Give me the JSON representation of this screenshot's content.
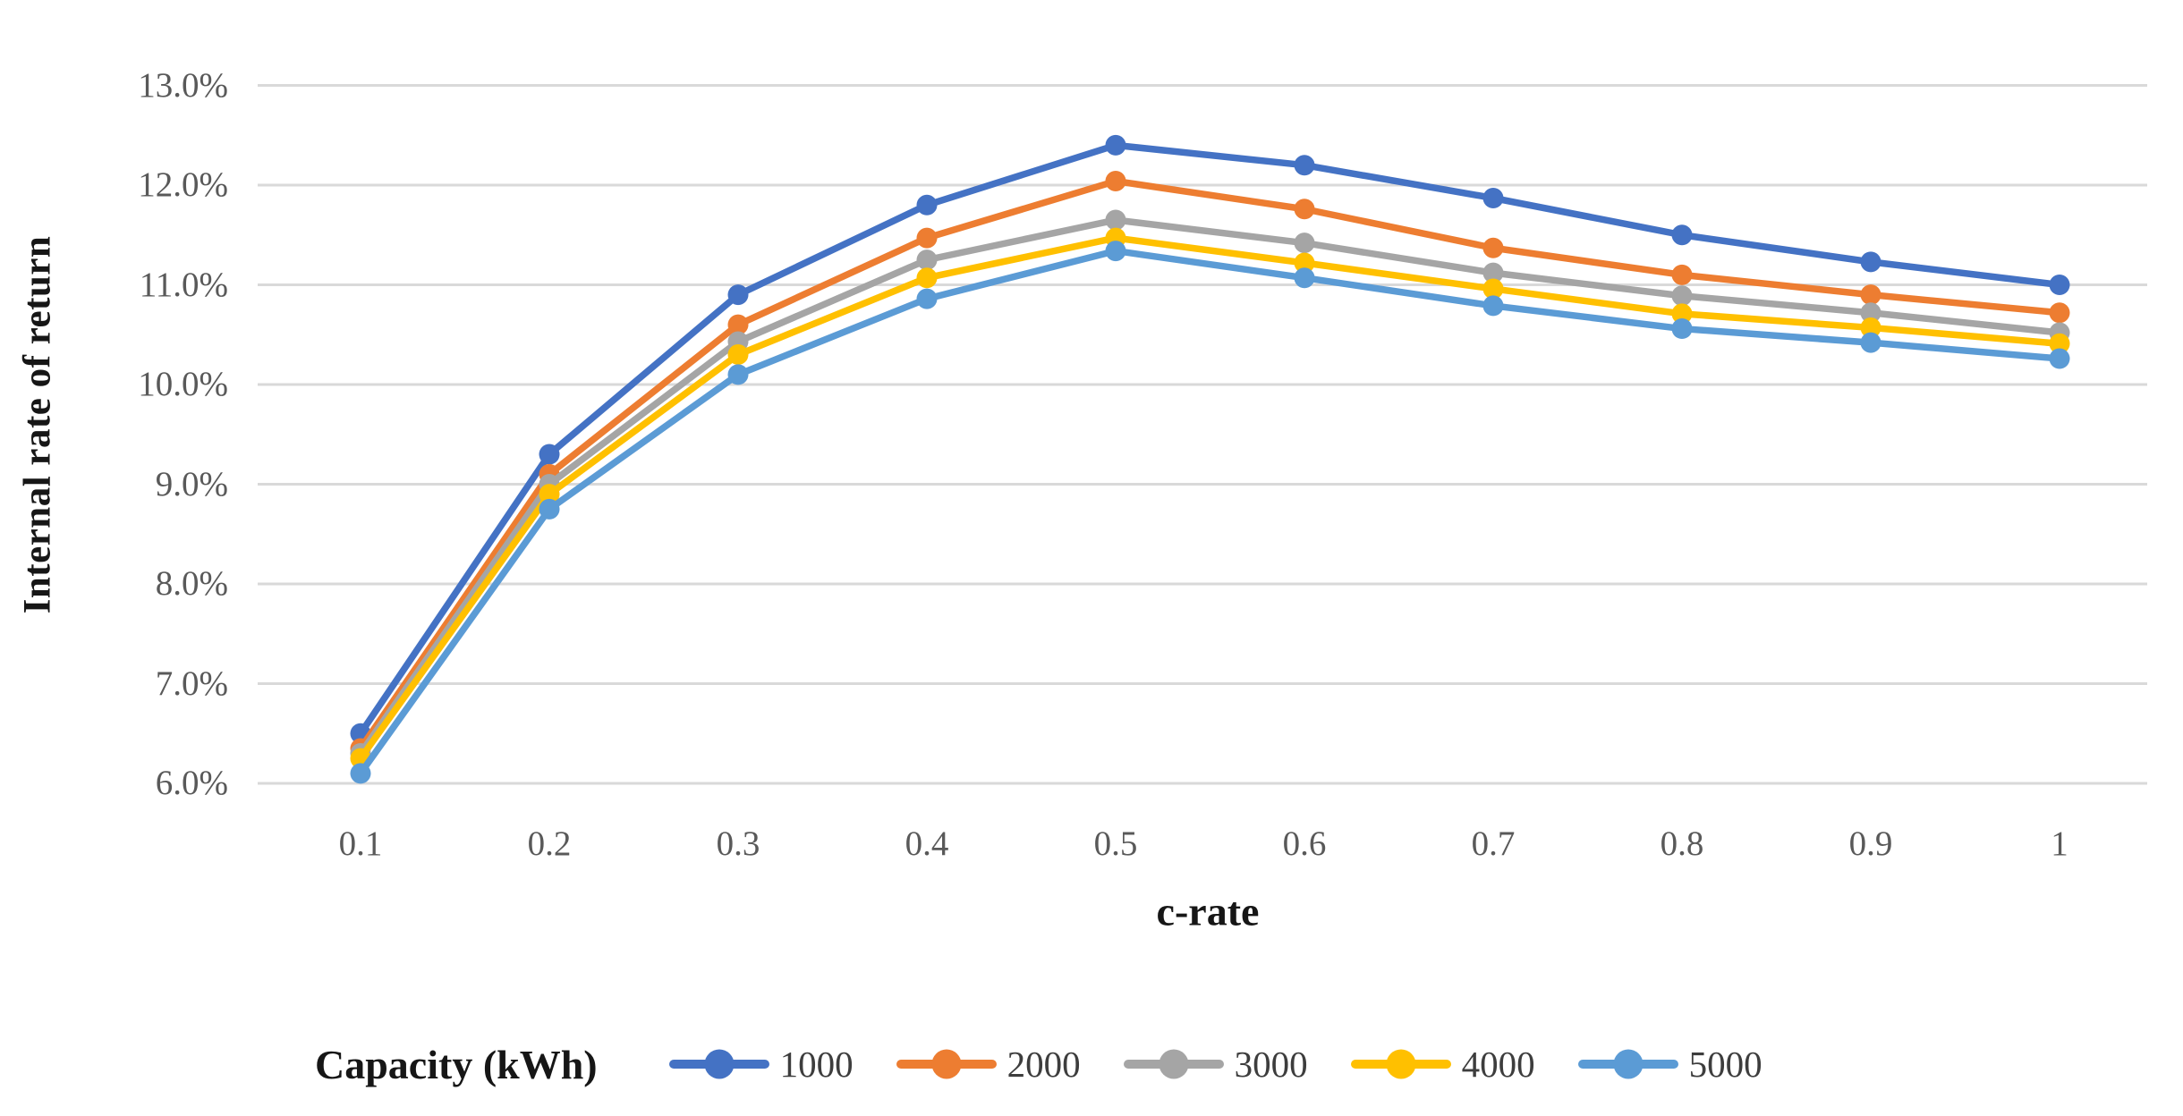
{
  "chart_data": {
    "type": "line",
    "title": "",
    "xlabel": "c-rate",
    "ylabel": "Internal rate of return",
    "legend_title": "Capacity (kWh)",
    "legend_position": "bottom",
    "grid": true,
    "background_color": "#ffffff",
    "gridline_color": "#d9d9d9",
    "tick_label_color": "#595959",
    "ylim": [
      6.0,
      13.0
    ],
    "xlim": [
      0.1,
      1.0
    ],
    "x": [
      0.1,
      0.2,
      0.3,
      0.4,
      0.5,
      0.6,
      0.7,
      0.8,
      0.9,
      1.0
    ],
    "xticks": [
      {
        "label": "0.1",
        "value": 0.1
      },
      {
        "label": "0.2",
        "value": 0.2
      },
      {
        "label": "0.3",
        "value": 0.3
      },
      {
        "label": "0.4",
        "value": 0.4
      },
      {
        "label": "0.5",
        "value": 0.5
      },
      {
        "label": "0.6",
        "value": 0.6
      },
      {
        "label": "0.7",
        "value": 0.7
      },
      {
        "label": "0.8",
        "value": 0.8
      },
      {
        "label": "0.9",
        "value": 0.9
      },
      {
        "label": "1",
        "value": 1.0
      }
    ],
    "yticks": [
      {
        "label": "6.0%",
        "value": 6.0
      },
      {
        "label": "7.0%",
        "value": 7.0
      },
      {
        "label": "8.0%",
        "value": 8.0
      },
      {
        "label": "9.0%",
        "value": 9.0
      },
      {
        "label": "10.0%",
        "value": 10.0
      },
      {
        "label": "11.0%",
        "value": 11.0
      },
      {
        "label": "12.0%",
        "value": 12.0
      },
      {
        "label": "13.0%",
        "value": 13.0
      }
    ],
    "y_unit": "percent",
    "series": [
      {
        "name": "1000",
        "color": "#4472C4",
        "values": [
          6.5,
          9.3,
          10.9,
          11.8,
          12.4,
          12.2,
          11.87,
          11.5,
          11.23,
          11.0
        ]
      },
      {
        "name": "2000",
        "color": "#ED7D31",
        "values": [
          6.35,
          9.1,
          10.6,
          11.47,
          12.04,
          11.76,
          11.37,
          11.1,
          10.9,
          10.72
        ]
      },
      {
        "name": "3000",
        "color": "#A5A5A5",
        "values": [
          6.3,
          9.0,
          10.43,
          11.25,
          11.65,
          11.42,
          11.12,
          10.89,
          10.72,
          10.52
        ]
      },
      {
        "name": "4000",
        "color": "#FFC000",
        "values": [
          6.25,
          8.9,
          10.3,
          11.07,
          11.47,
          11.22,
          10.96,
          10.71,
          10.57,
          10.41
        ]
      },
      {
        "name": "5000",
        "color": "#5B9BD5",
        "values": [
          6.1,
          8.75,
          10.1,
          10.86,
          11.34,
          11.07,
          10.79,
          10.56,
          10.42,
          10.26
        ]
      }
    ]
  }
}
